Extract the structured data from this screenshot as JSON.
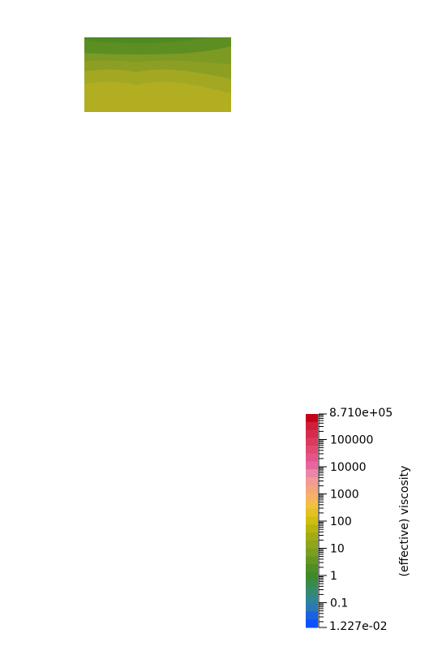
{
  "chart_data": {
    "type": "heatmap",
    "scale": "log",
    "colorbar": {
      "title": "(effective) viscosity",
      "max_label": "8.710e+05",
      "min_label": "1.227e-02",
      "min": 0.01227,
      "max": 871000,
      "ticks": [
        {
          "value": 100000,
          "label": "100000"
        },
        {
          "value": 10000,
          "label": "10000"
        },
        {
          "value": 1000,
          "label": "1000"
        },
        {
          "value": 100,
          "label": "100"
        },
        {
          "value": 10,
          "label": "10"
        },
        {
          "value": 1,
          "label": "1"
        },
        {
          "value": 0.1,
          "label": "0.1"
        }
      ],
      "colors_top_to_bottom": [
        "#c4001b",
        "#cf1f3a",
        "#d62b4c",
        "#dc3a5c",
        "#e04a72",
        "#e4568a",
        "#e865a0",
        "#ec86a8",
        "#f29a96",
        "#f4a57c",
        "#f5b263",
        "#f2bf40",
        "#e3c11e",
        "#cfbd12",
        "#b8b40f",
        "#a3ab14",
        "#8fa51b",
        "#7b9e20",
        "#639621",
        "#4e8e22",
        "#3e8a2a",
        "#3a8a4e",
        "#348a70",
        "#2d8494",
        "#2a78b6",
        "#1b62de",
        "#0a51ff"
      ]
    },
    "panels": [
      {
        "index": 1,
        "background": "#7d9d1c"
      },
      {
        "index": 2,
        "background": "#b8b40f"
      },
      {
        "index": 3,
        "background": "#c41a35"
      },
      {
        "index": 4,
        "background": "#aa0000"
      },
      {
        "index": 5,
        "background": "#aa0000"
      },
      {
        "index": 6,
        "background": "#aa0000"
      }
    ]
  }
}
